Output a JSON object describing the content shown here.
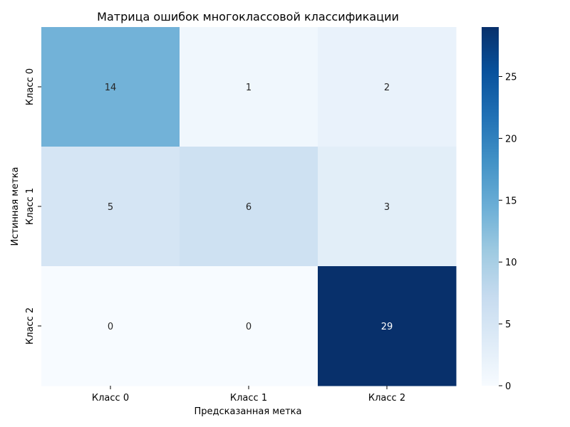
{
  "chart_data": {
    "type": "heatmap",
    "title": "Матрица ошибок многоклассовой классификации",
    "xlabel": "Предсказанная метка",
    "ylabel": "Истинная метка",
    "x_categories": [
      "Класс 0",
      "Класс 1",
      "Класс 2"
    ],
    "y_categories": [
      "Класс 0",
      "Класс 1",
      "Класс 2"
    ],
    "values": [
      [
        14,
        1,
        2
      ],
      [
        5,
        6,
        3
      ],
      [
        0,
        0,
        29
      ]
    ],
    "colorbar": {
      "min": 0,
      "max": 29,
      "ticks": [
        0,
        5,
        10,
        15,
        20,
        25
      ],
      "colormap": "Blues",
      "colors": [
        "#f7fbff",
        "#deebf7",
        "#c6dbef",
        "#9ecae1",
        "#6baed6",
        "#4292c6",
        "#2171b5",
        "#08519c",
        "#08306b"
      ]
    },
    "annotated": true,
    "grid": false
  }
}
